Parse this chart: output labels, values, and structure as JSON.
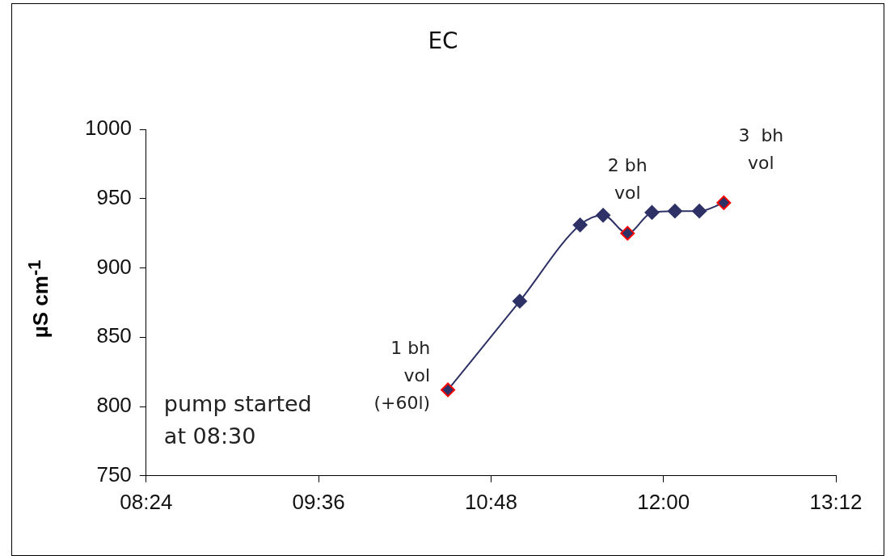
{
  "chart_data": {
    "type": "line",
    "title": "EC",
    "ylabel": "µS cm$^{-1}$",
    "x": [
      10.5,
      11.0,
      11.42,
      11.58,
      11.75,
      11.92,
      12.08,
      12.25,
      12.42
    ],
    "series": [
      {
        "color": "#2e3165",
        "values": [
          812,
          876,
          931,
          938,
          925,
          940,
          941,
          941,
          947
        ],
        "colors": [
          "#ff0000",
          "#2e3165",
          "#2e3165",
          "#2e3165",
          "#ff0000",
          "#2e3165",
          "#2e3165",
          "#2e3165",
          "#ff0000"
        ]
      }
    ],
    "xlim": [
      8.4,
      13.2
    ],
    "xticks": [
      {
        "value": 8.4,
        "label": "08:24"
      },
      {
        "value": 9.6,
        "label": "09:36"
      },
      {
        "value": 10.8,
        "label": "10:48"
      },
      {
        "value": 12.0,
        "label": "12:00"
      },
      {
        "value": 13.2,
        "label": "13:12"
      }
    ],
    "ylim": [
      750,
      1000
    ],
    "yticks": [
      750,
      800,
      850,
      900,
      950,
      1000
    ],
    "marker": "diamond",
    "grid": false,
    "legend": false,
    "annotations": [
      {
        "text": "1 bh vol (+60l)",
        "x": 10.5,
        "y": 812
      },
      {
        "text": "2 bh vol",
        "x": 11.75,
        "y": 925
      },
      {
        "text": "3  bh vol",
        "x": 12.42,
        "y": 947
      },
      "pump started at 08:30"
    ]
  }
}
